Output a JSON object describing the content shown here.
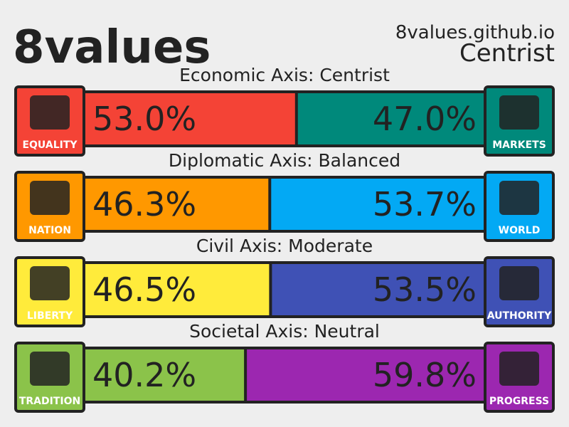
{
  "header": {
    "title": "8values",
    "site": "8values.github.io",
    "ideology": "Centrist"
  },
  "axes": [
    {
      "title": "Economic Axis: Centrist",
      "left_label": "EQUALITY",
      "right_label": "MARKETS",
      "values": [
        53.0,
        47.0
      ],
      "value_labels": [
        "53.0%",
        "47.0%"
      ],
      "colors": [
        "#f44336",
        "#00897b"
      ]
    },
    {
      "title": "Diplomatic Axis: Balanced",
      "left_label": "NATION",
      "right_label": "WORLD",
      "values": [
        46.3,
        53.7
      ],
      "value_labels": [
        "46.3%",
        "53.7%"
      ],
      "colors": [
        "#ff9800",
        "#03a9f4"
      ]
    },
    {
      "title": "Civil Axis: Moderate",
      "left_label": "LIBERTY",
      "right_label": "AUTHORITY",
      "values": [
        46.5,
        53.5
      ],
      "value_labels": [
        "46.5%",
        "53.5%"
      ],
      "colors": [
        "#ffeb3b",
        "#3f51b5"
      ]
    },
    {
      "title": "Societal Axis: Neutral",
      "left_label": "TRADITION",
      "right_label": "PROGRESS",
      "values": [
        40.2,
        59.8
      ],
      "value_labels": [
        "40.2%",
        "59.8%"
      ],
      "colors": [
        "#8bc34a",
        "#9c27b0"
      ]
    }
  ]
}
